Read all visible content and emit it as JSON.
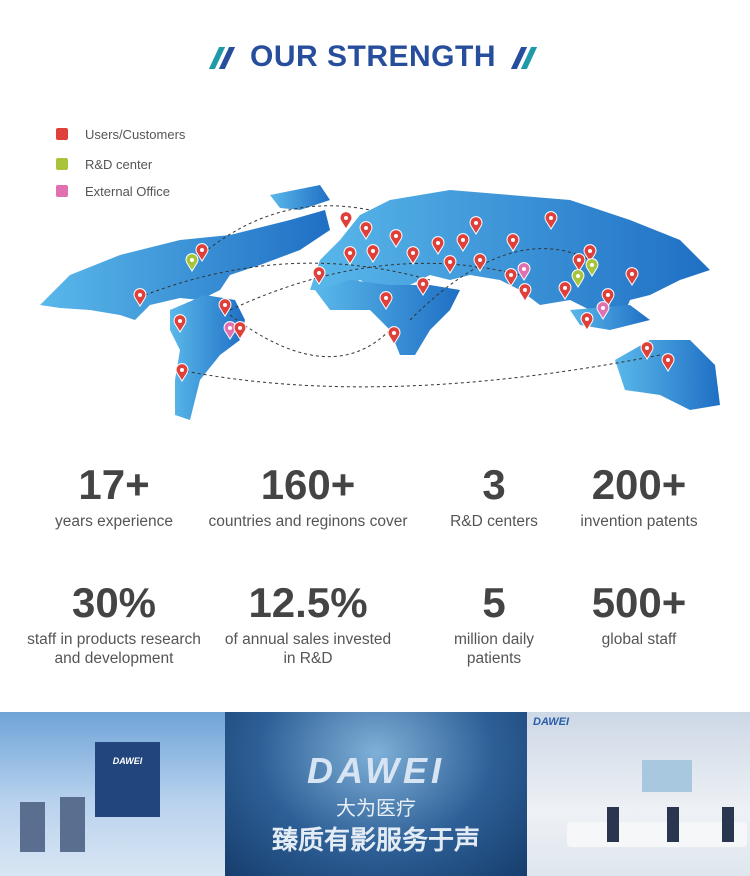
{
  "header": {
    "title": "OUR STRENGTH"
  },
  "legend": [
    {
      "label": "Users/Customers",
      "color": "#e0403a"
    },
    {
      "label": "R&D center",
      "color": "#a8c43a"
    },
    {
      "label": "External Office",
      "color": "#e070b0"
    }
  ],
  "colors": {
    "title": "#264e9c",
    "accent_teal": "#1e9aa8",
    "map": "#2f8fd6"
  },
  "stats": [
    {
      "value": "17+",
      "label": "years experience"
    },
    {
      "value": "160+",
      "label": "countries and reginons cover"
    },
    {
      "value": "3",
      "label": "R&D centers"
    },
    {
      "value": "200+",
      "label": "invention patents"
    },
    {
      "value": "30%",
      "label": "staff in products research and development"
    },
    {
      "value": "12.5%",
      "label": "of annual sales invested in R&D"
    },
    {
      "value": "5",
      "label": "million daily patients"
    },
    {
      "value": "500+",
      "label": "global staff"
    }
  ],
  "photos": {
    "logo_text": "DAWEI",
    "wall_brand": "DAWEI",
    "wall_cn_1": "大为医疗",
    "wall_cn_2": "臻质有影服务于声"
  }
}
